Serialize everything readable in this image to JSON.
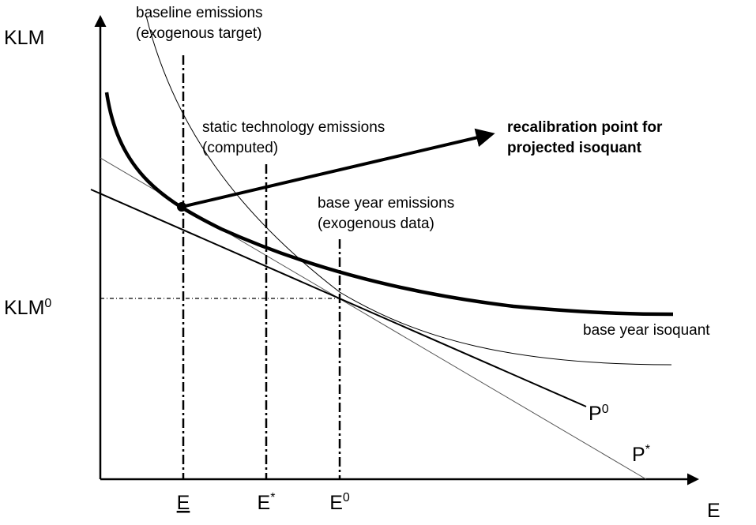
{
  "axes": {
    "y_label": "KLM",
    "x_label": "E"
  },
  "levels": {
    "klm0": {
      "text": "KLM",
      "sup": "0"
    }
  },
  "markers": [
    {
      "text": "E"
    },
    {
      "text": "E",
      "sup": "*"
    },
    {
      "text": "E",
      "sup": "0"
    }
  ],
  "annotations": {
    "baseline": [
      "baseline emissions",
      "(exogenous target)"
    ],
    "static": [
      "static technology emissions",
      "(computed)"
    ],
    "base_year": [
      "base year emissions",
      "(exogenous data)"
    ],
    "recalibration": [
      "recalibration point for",
      "projected isoquant"
    ],
    "isoquant": "base year isoquant"
  },
  "lines": {
    "p0": {
      "text": "P",
      "sup": "0"
    },
    "pstar": {
      "text": "P",
      "sup": "*"
    }
  }
}
